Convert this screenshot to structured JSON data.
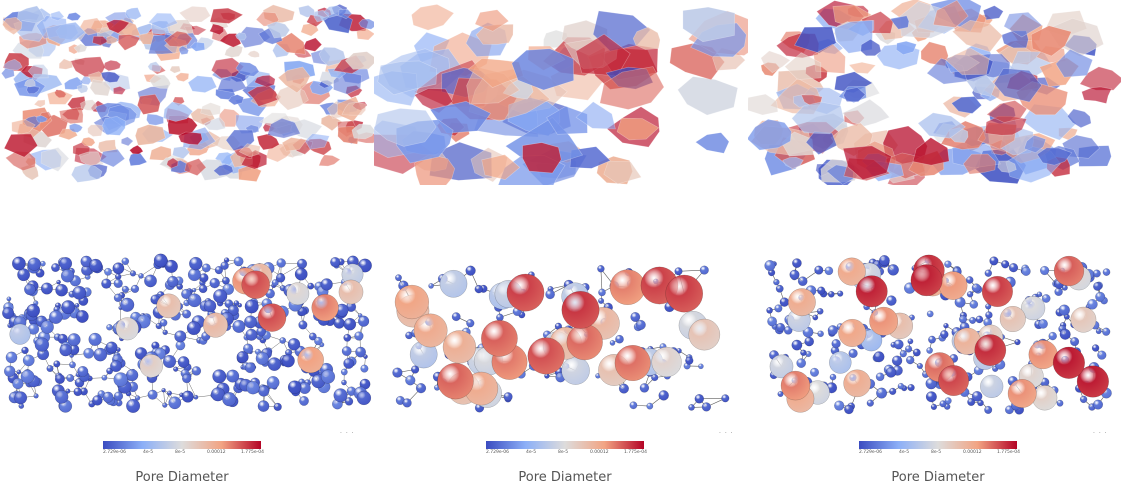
{
  "panels": [
    {
      "colorbar": {
        "ticks": [
          "2.729e-06",
          "4e-5",
          "8e-5",
          "0.00012",
          "1.775e-04"
        ]
      },
      "caption": "Pore Diameter",
      "dots": "· · ·"
    },
    {
      "colorbar": {
        "ticks": [
          "2.729e-06",
          "4e-5",
          "8e-5",
          "0.00012",
          "1.775e-04"
        ]
      },
      "caption": "Pore Diameter",
      "dots": "· · ·"
    },
    {
      "colorbar": {
        "ticks": [
          "2.729e-06",
          "4e-5",
          "8e-5",
          "0.00012",
          "1.775e-04"
        ]
      },
      "caption": "Pore Diameter",
      "dots": "· · ·"
    }
  ],
  "colormap": {
    "low": "#3b4cc0",
    "mid_low": "#8caff7",
    "mid": "#dddcdc",
    "mid_high": "#f2a483",
    "high": "#b40426",
    "edge": "#333333"
  }
}
